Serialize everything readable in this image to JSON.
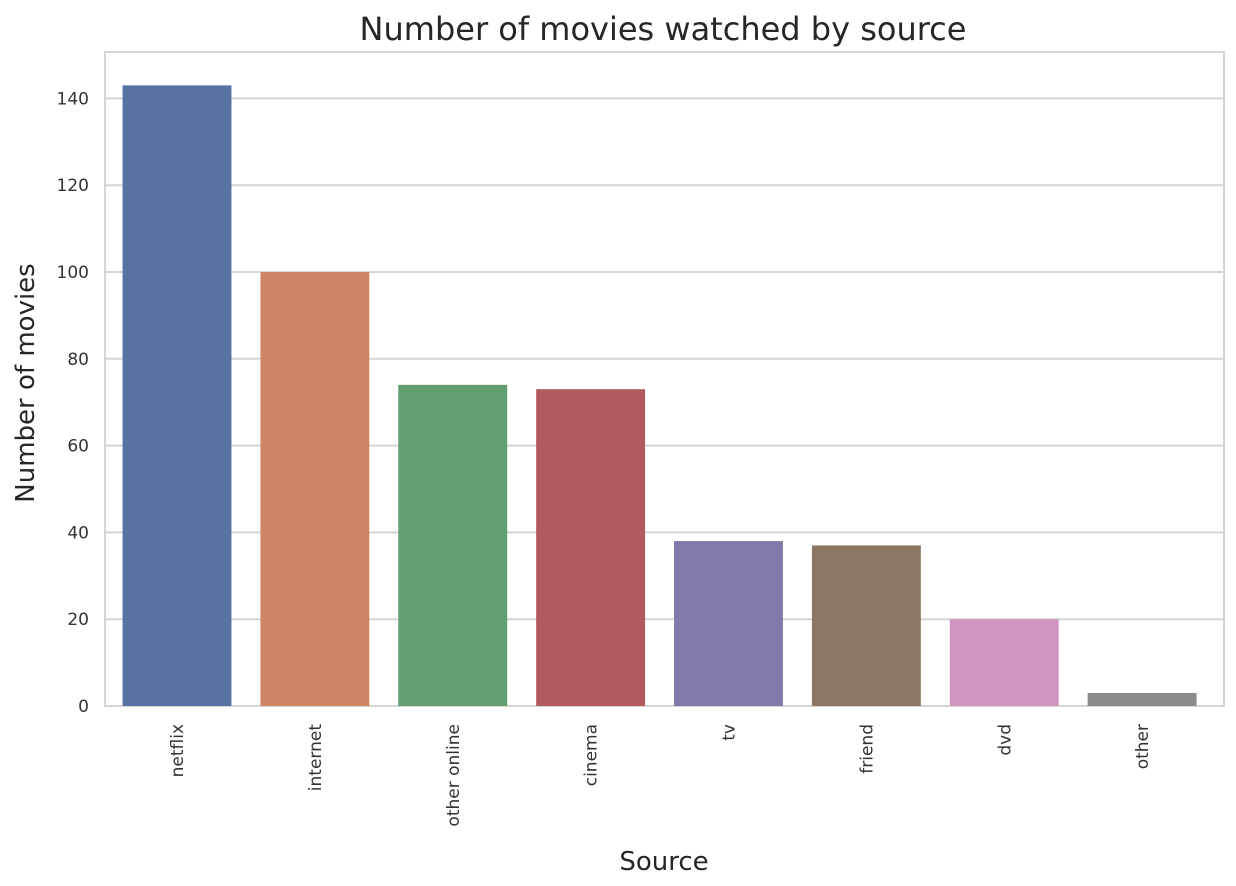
{
  "chart_data": {
    "type": "bar",
    "title": "Number of movies watched by source",
    "xlabel": "Source",
    "ylabel": "Number of movies",
    "categories": [
      "netflix",
      "internet",
      "other online",
      "cinema",
      "tv",
      "friend",
      "dvd",
      "other"
    ],
    "values": [
      143,
      100,
      74,
      73,
      38,
      37,
      20,
      3
    ],
    "colors": [
      "#5873a3",
      "#cb8763",
      "#609d71",
      "#b25b5e",
      "#8379aa",
      "#8c7764",
      "#d096bf",
      "#8c8c8c"
    ],
    "yticks": [
      0,
      20,
      40,
      60,
      80,
      100,
      120,
      140
    ],
    "ylim": [
      0,
      150
    ],
    "grid": true,
    "x_tick_rotation": "vertical"
  }
}
